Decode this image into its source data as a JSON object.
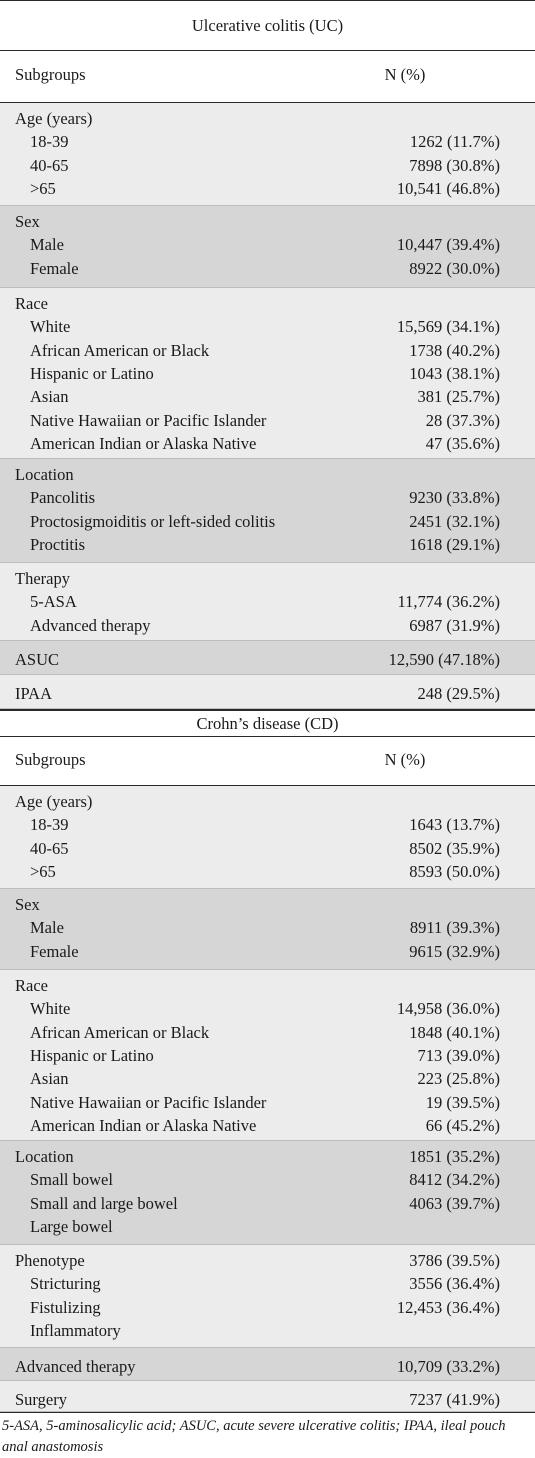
{
  "uc": {
    "title": "Ulcerative colitis (UC)",
    "col_subgroups": "Subgroups",
    "col_n": "N (%)",
    "groups": [
      {
        "rows": [
          {
            "label": "Age (years)",
            "value": "",
            "sub": false
          },
          {
            "label": "18-39",
            "value": "1262 (11.7%)",
            "sub": true
          },
          {
            "label": "40-65",
            "value": "7898 (30.8%)",
            "sub": true
          },
          {
            "label": ">65",
            "value": "10,541 (46.8%)",
            "sub": true
          }
        ]
      },
      {
        "rows": [
          {
            "label": "Sex",
            "value": "",
            "sub": false
          },
          {
            "label": "Male",
            "value": "10,447 (39.4%)",
            "sub": true
          },
          {
            "label": "Female",
            "value": "8922 (30.0%)",
            "sub": true
          }
        ]
      },
      {
        "rows": [
          {
            "label": "Race",
            "value": "",
            "sub": false
          },
          {
            "label": "White",
            "value": "15,569 (34.1%)",
            "sub": true
          },
          {
            "label": "African American or Black",
            "value": "1738 (40.2%)",
            "sub": true
          },
          {
            "label": "Hispanic or Latino",
            "value": "1043 (38.1%)",
            "sub": true
          },
          {
            "label": "Asian",
            "value": "381 (25.7%)",
            "sub": true
          },
          {
            "label": "Native Hawaiian or Pacific Islander",
            "value": "28 (37.3%)",
            "sub": true
          },
          {
            "label": "American Indian or Alaska Native",
            "value": "47 (35.6%)",
            "sub": true
          }
        ]
      },
      {
        "rows": [
          {
            "label": "Location",
            "value": "",
            "sub": false
          },
          {
            "label": "Pancolitis",
            "value": "9230 (33.8%)",
            "sub": true
          },
          {
            "label": "Proctosigmoiditis or left-sided colitis",
            "value": "2451 (32.1%)",
            "sub": true
          },
          {
            "label": "Proctitis",
            "value": "1618 (29.1%)",
            "sub": true
          }
        ]
      },
      {
        "rows": [
          {
            "label": "Therapy",
            "value": "",
            "sub": false
          },
          {
            "label": "5-ASA",
            "value": "11,774 (36.2%)",
            "sub": true
          },
          {
            "label": "Advanced therapy",
            "value": "6987 (31.9%)",
            "sub": true
          }
        ]
      },
      {
        "rows": [
          {
            "label": "ASUC",
            "value": "12,590 (47.18%)",
            "sub": false
          }
        ]
      },
      {
        "rows": [
          {
            "label": "IPAA",
            "value": "248 (29.5%)",
            "sub": false
          }
        ]
      }
    ]
  },
  "cd": {
    "title": "Crohn’s disease (CD)",
    "col_subgroups": "Subgroups",
    "col_n": "N (%)",
    "groups": [
      {
        "rows": [
          {
            "label": "Age (years)",
            "value": "",
            "sub": false
          },
          {
            "label": "18-39",
            "value": "1643 (13.7%)",
            "sub": true
          },
          {
            "label": "40-65",
            "value": "8502 (35.9%)",
            "sub": true
          },
          {
            "label": ">65",
            "value": "8593 (50.0%)",
            "sub": true
          }
        ]
      },
      {
        "rows": [
          {
            "label": "Sex",
            "value": "",
            "sub": false
          },
          {
            "label": "Male",
            "value": "8911 (39.3%)",
            "sub": true
          },
          {
            "label": "Female",
            "value": "9615 (32.9%)",
            "sub": true
          }
        ]
      },
      {
        "rows": [
          {
            "label": "Race",
            "value": "",
            "sub": false
          },
          {
            "label": "White",
            "value": "14,958 (36.0%)",
            "sub": true
          },
          {
            "label": "African American or Black",
            "value": "1848 (40.1%)",
            "sub": true
          },
          {
            "label": "Hispanic or Latino",
            "value": "713 (39.0%)",
            "sub": true
          },
          {
            "label": "Asian",
            "value": "223 (25.8%)",
            "sub": true
          },
          {
            "label": "Native Hawaiian or Pacific Islander",
            "value": "19 (39.5%)",
            "sub": true
          },
          {
            "label": "American Indian or Alaska Native",
            "value": "66 (45.2%)",
            "sub": true
          }
        ]
      },
      {
        "rows": [
          {
            "label": "Location",
            "value": "1851 (35.2%)",
            "sub": false
          },
          {
            "label": "Small bowel",
            "value": "8412 (34.2%)",
            "sub": true
          },
          {
            "label": "Small and large bowel",
            "value": "4063 (39.7%)",
            "sub": true
          },
          {
            "label": "Large bowel",
            "value": "",
            "sub": true
          }
        ]
      },
      {
        "rows": [
          {
            "label": "Phenotype",
            "value": "3786 (39.5%)",
            "sub": false
          },
          {
            "label": "Stricturing",
            "value": "3556 (36.4%)",
            "sub": true
          },
          {
            "label": "Fistulizing",
            "value": "12,453 (36.4%)",
            "sub": true
          },
          {
            "label": "Inflammatory",
            "value": "",
            "sub": true
          }
        ]
      },
      {
        "rows": [
          {
            "label": "Advanced therapy",
            "value": "10,709 (33.2%)",
            "sub": false
          }
        ]
      },
      {
        "rows": [
          {
            "label": "Surgery",
            "value": "7237 (41.9%)",
            "sub": false
          }
        ]
      }
    ]
  },
  "footnote": "5-ASA, 5-aminosalicylic acid; ASUC, acute severe ulcerative colitis; IPAA, ileal pouch anal anastomosis",
  "colors": {
    "band_light": "#ececec",
    "band_dark": "#d6d6d6",
    "rule": "#2a2a2a"
  }
}
